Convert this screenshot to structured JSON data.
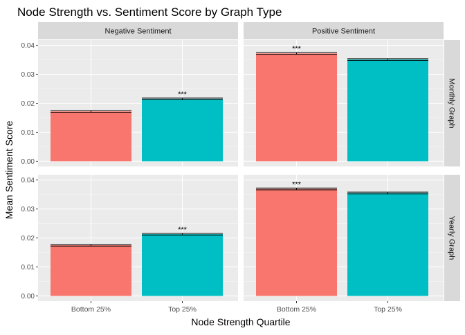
{
  "chart_data": {
    "type": "bar",
    "title": "Node Strength vs. Sentiment Score by Graph Type",
    "xlabel": "Node Strength Quartile",
    "ylabel": "Mean Sentiment Score",
    "categories": [
      "Bottom 25%",
      "Top 25%"
    ],
    "category_colors": [
      "#F8766D",
      "#00BFC4"
    ],
    "ylim": [
      0,
      0.04
    ],
    "yticks": [
      "0.00",
      "0.01",
      "0.02",
      "0.03",
      "0.04"
    ],
    "grid": true,
    "facet_columns": [
      "Negative Sentiment",
      "Positive Sentiment"
    ],
    "facet_rows": [
      "Monthly Graph",
      "Yearly Graph"
    ],
    "panels": [
      {
        "col": "Negative Sentiment",
        "row": "Monthly Graph",
        "values": [
          0.0172,
          0.0215
        ],
        "errors": [
          0.0003,
          0.0003
        ],
        "significance": [
          "",
          "***"
        ]
      },
      {
        "col": "Positive Sentiment",
        "row": "Monthly Graph",
        "values": [
          0.0372,
          0.0351
        ],
        "errors": [
          0.0003,
          0.0003
        ],
        "significance": [
          "***",
          ""
        ]
      },
      {
        "col": "Negative Sentiment",
        "row": "Yearly Graph",
        "values": [
          0.0175,
          0.0213
        ],
        "errors": [
          0.0003,
          0.0003
        ],
        "significance": [
          "",
          "***"
        ]
      },
      {
        "col": "Positive Sentiment",
        "row": "Yearly Graph",
        "values": [
          0.0369,
          0.0355
        ],
        "errors": [
          0.0003,
          0.0003
        ],
        "significance": [
          "***",
          ""
        ]
      }
    ]
  }
}
